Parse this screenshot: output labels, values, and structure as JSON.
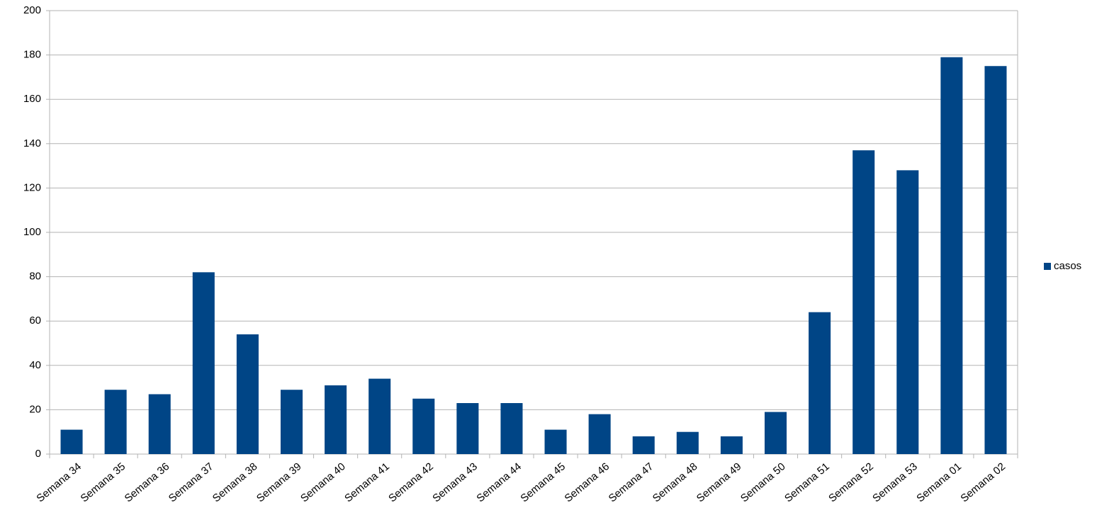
{
  "chart_data": {
    "type": "bar",
    "categories": [
      "Semana 34",
      "Semana 35",
      "Semana 36",
      "Semana 37",
      "Semana 38",
      "Semana 39",
      "Semana 40",
      "Semana 41",
      "Semana 42",
      "Semana 43",
      "Semana 44",
      "Semana 45",
      "Semana 46",
      "Semana 47",
      "Semana 48",
      "Semana 49",
      "Semana 50",
      "Semana 51",
      "Semana 52",
      "Semana 53",
      "Semana 01",
      "Semana 02"
    ],
    "series": [
      {
        "name": "casos",
        "color": "#004586",
        "values": [
          11,
          29,
          27,
          82,
          54,
          29,
          31,
          34,
          25,
          23,
          23,
          11,
          18,
          8,
          10,
          8,
          19,
          64,
          137,
          128,
          179,
          175
        ]
      }
    ],
    "ylim": [
      0,
      200
    ],
    "yticks": [
      0,
      20,
      40,
      60,
      80,
      100,
      120,
      140,
      160,
      180,
      200
    ],
    "grid": true,
    "legend": "right"
  }
}
